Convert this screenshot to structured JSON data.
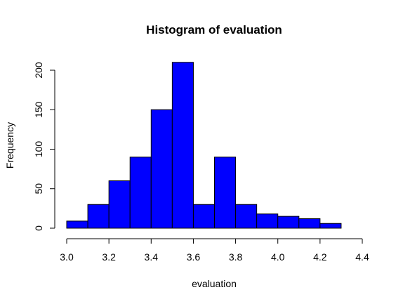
{
  "chart_data": {
    "type": "bar",
    "title": "Histogram of evaluation",
    "xlabel": "evaluation",
    "ylabel": "Frequency",
    "xlim": [
      3.0,
      4.4
    ],
    "ylim": [
      0,
      210
    ],
    "x_ticks": [
      "3.0",
      "3.2",
      "3.4",
      "3.6",
      "3.8",
      "4.0",
      "4.2",
      "4.4"
    ],
    "y_ticks": [
      "0",
      "50",
      "100",
      "150",
      "200"
    ],
    "bins": [
      {
        "start": 3.0,
        "end": 3.1,
        "count": 9
      },
      {
        "start": 3.1,
        "end": 3.2,
        "count": 30
      },
      {
        "start": 3.2,
        "end": 3.3,
        "count": 60
      },
      {
        "start": 3.3,
        "end": 3.4,
        "count": 90
      },
      {
        "start": 3.4,
        "end": 3.5,
        "count": 150
      },
      {
        "start": 3.5,
        "end": 3.6,
        "count": 210
      },
      {
        "start": 3.6,
        "end": 3.7,
        "count": 30
      },
      {
        "start": 3.7,
        "end": 3.8,
        "count": 90
      },
      {
        "start": 3.8,
        "end": 3.9,
        "count": 30
      },
      {
        "start": 3.9,
        "end": 4.0,
        "count": 18
      },
      {
        "start": 4.0,
        "end": 4.1,
        "count": 15
      },
      {
        "start": 4.1,
        "end": 4.2,
        "count": 12
      },
      {
        "start": 4.2,
        "end": 4.3,
        "count": 6
      }
    ],
    "bar_color": "#0000ff",
    "bar_border_color": "#000000",
    "grid": false,
    "legend": "none"
  }
}
